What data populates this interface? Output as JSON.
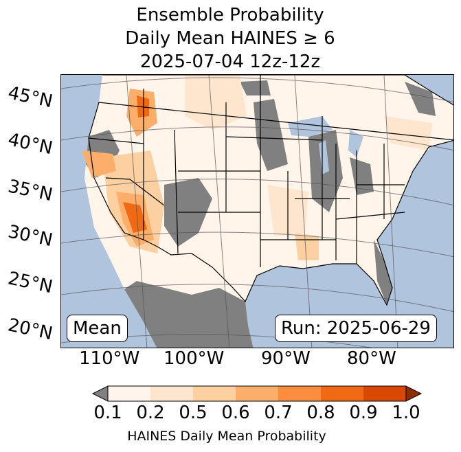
{
  "title": {
    "line1": "Ensemble Probability",
    "line2": "Daily Mean HAINES ≥ 6",
    "line3": "2025-07-04 12z-12z"
  },
  "map": {
    "lat_labels": [
      "45°N",
      "40°N",
      "35°N",
      "30°N",
      "25°N",
      "20°N"
    ],
    "lon_labels": [
      "110°W",
      "100°W",
      "90°W",
      "80°W"
    ],
    "mean_label": "Mean",
    "run_label": "Run: 2025-06-29",
    "colors": {
      "ocean": "#b0c4de",
      "below_min": "#808080"
    }
  },
  "colorbar": {
    "label": "HAINES Daily Mean Probability",
    "ticks": [
      "0.1",
      "0.2",
      "0.5",
      "0.6",
      "0.7",
      "0.8",
      "0.9",
      "1.0"
    ],
    "colors": [
      "#fff5eb",
      "#fee6ce",
      "#fdd0a2",
      "#fdae6b",
      "#fd8d3c",
      "#f16913",
      "#d94801"
    ],
    "under_color": "#808080",
    "over_color": "#8c2d04"
  }
}
